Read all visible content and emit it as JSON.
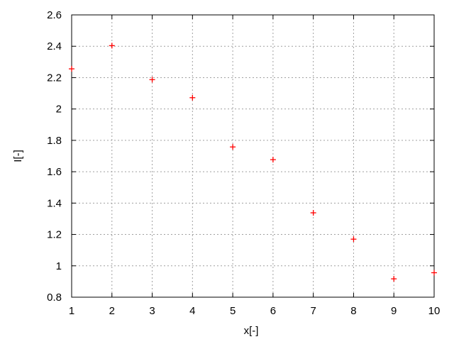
{
  "chart_data": {
    "type": "scatter",
    "title": "",
    "xlabel": "x[-]",
    "ylabel": "I[-]",
    "xlim": [
      1,
      10
    ],
    "ylim": [
      0.8,
      2.6
    ],
    "xticks": [
      "1",
      "2",
      "3",
      "4",
      "5",
      "6",
      "7",
      "8",
      "9",
      "10"
    ],
    "yticks": [
      "0.8",
      "1",
      "1.2",
      "1.4",
      "1.6",
      "1.8",
      "2",
      "2.2",
      "2.4",
      "2.6"
    ],
    "grid": true,
    "marker": "plus",
    "color": "#ff0000",
    "x": [
      1,
      2,
      3,
      4,
      5,
      6,
      7,
      8,
      9,
      10
    ],
    "y": [
      2.256,
      2.404,
      2.187,
      2.072,
      1.758,
      1.677,
      1.338,
      1.17,
      0.917,
      0.956
    ]
  }
}
